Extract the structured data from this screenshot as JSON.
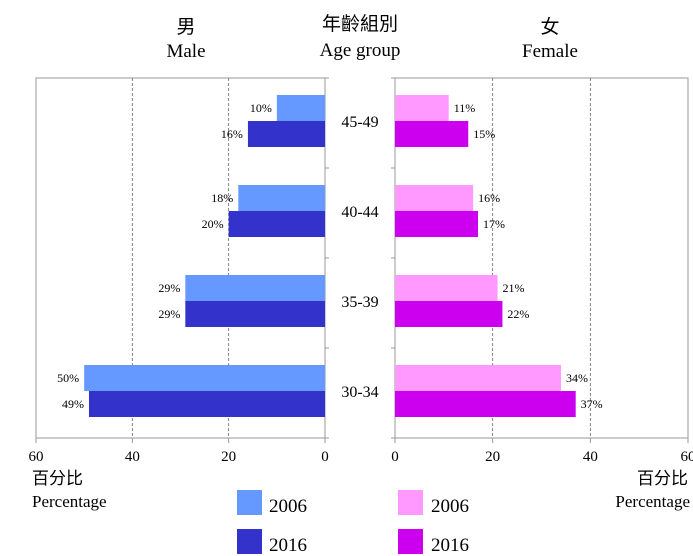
{
  "chart_data": {
    "type": "bar",
    "orientation": "horizontal",
    "layout": "population-pyramid",
    "age_header": {
      "zh": "年齡組別",
      "en": "Age group"
    },
    "categories": [
      "45-49",
      "40-44",
      "35-39",
      "30-34"
    ],
    "panels": [
      {
        "key": "male",
        "title_zh": "男",
        "title_en": "Male",
        "xlim": [
          0,
          60
        ],
        "direction": "reversed",
        "xticks": [
          60,
          40,
          20,
          0
        ],
        "axis_label_zh": "百分比",
        "axis_label_en": "Percentage",
        "series": [
          {
            "name": "2006",
            "color": "#6699FF",
            "values": [
              10,
              18,
              29,
              50
            ],
            "labels": [
              "10%",
              "18%",
              "29%",
              "50%"
            ]
          },
          {
            "name": "2016",
            "color": "#3333CC",
            "values": [
              16,
              20,
              29,
              49
            ],
            "labels": [
              "16%",
              "20%",
              "29%",
              "49%"
            ]
          }
        ]
      },
      {
        "key": "female",
        "title_zh": "女",
        "title_en": "Female",
        "xlim": [
          0,
          60
        ],
        "direction": "normal",
        "xticks": [
          0,
          20,
          40,
          60
        ],
        "axis_label_zh": "百分比",
        "axis_label_en": "Percentage",
        "series": [
          {
            "name": "2006",
            "color": "#FF99FF",
            "values": [
              11,
              16,
              21,
              34
            ],
            "labels": [
              "11%",
              "16%",
              "21%",
              "34%"
            ]
          },
          {
            "name": "2016",
            "color": "#CC00EE",
            "values": [
              15,
              17,
              22,
              37
            ],
            "labels": [
              "15%",
              "17%",
              "22%",
              "37%"
            ]
          }
        ]
      }
    ],
    "grid": {
      "vertical_dashed": true,
      "gridline_values": [
        20,
        40
      ]
    },
    "legend": {
      "placement": "bottom",
      "male": [
        {
          "label": "2006",
          "color": "#6699FF"
        },
        {
          "label": "2016",
          "color": "#3333CC"
        }
      ],
      "female": [
        {
          "label": "2006",
          "color": "#FF99FF"
        },
        {
          "label": "2016",
          "color": "#CC00EE"
        }
      ]
    }
  }
}
